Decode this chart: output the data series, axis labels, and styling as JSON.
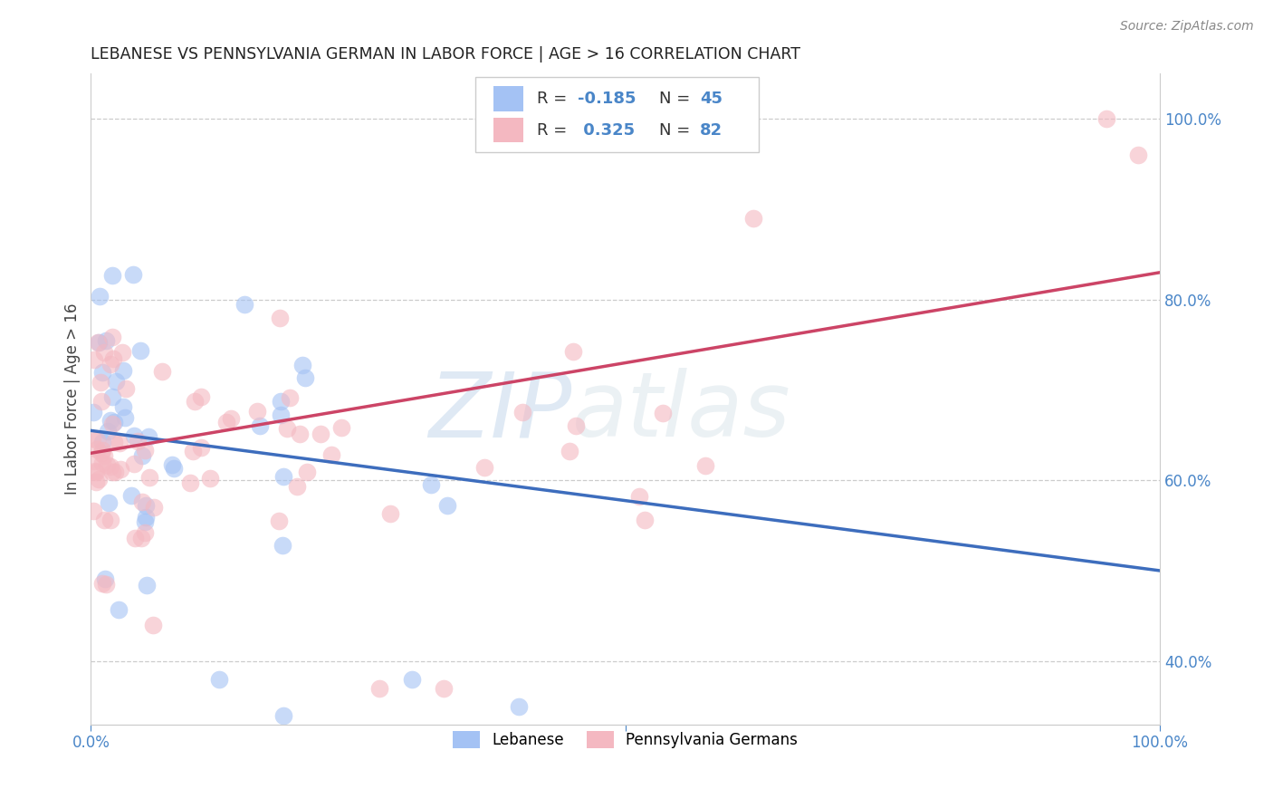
{
  "title": "LEBANESE VS PENNSYLVANIA GERMAN IN LABOR FORCE | AGE > 16 CORRELATION CHART",
  "source": "Source: ZipAtlas.com",
  "ylabel": "In Labor Force | Age > 16",
  "legend_labels": [
    "Lebanese",
    "Pennsylvania Germans"
  ],
  "blue_color": "#a4c2f4",
  "pink_color": "#f4b8c1",
  "blue_r": -0.185,
  "blue_n": 45,
  "pink_r": 0.325,
  "pink_n": 82,
  "blue_line_color": "#3d6dbd",
  "pink_line_color": "#cc4466",
  "watermark_zip": "ZIP",
  "watermark_atlas": "atlas",
  "background_color": "#ffffff",
  "grid_color": "#cccccc",
  "xlim": [
    0.0,
    1.0
  ],
  "ylim": [
    0.33,
    1.05
  ],
  "right_yticks": [
    0.4,
    0.6,
    0.8,
    1.0
  ],
  "right_ytick_labels": [
    "40.0%",
    "60.0%",
    "80.0%",
    "100.0%"
  ],
  "xtick_positions": [
    0.0,
    0.5,
    1.0
  ],
  "xtick_labels": [
    "0.0%",
    "",
    "100.0%"
  ],
  "axis_label_color": "#4a86c8",
  "title_color": "#222222",
  "source_color": "#888888"
}
